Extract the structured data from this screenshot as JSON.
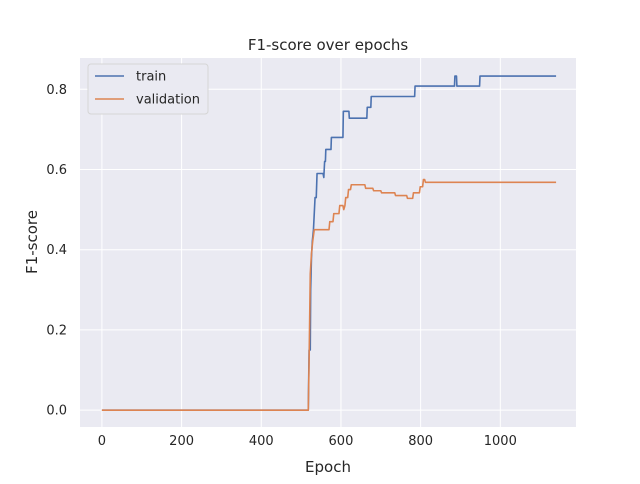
{
  "chart_data": {
    "type": "line",
    "title": "F1-score over epochs",
    "xlabel": "Epoch",
    "ylabel": "F1-score",
    "xlim": [
      -55,
      1190
    ],
    "ylim": [
      -0.042,
      0.878
    ],
    "xticks": [
      0,
      200,
      400,
      600,
      800,
      1000
    ],
    "xtick_labels": [
      "0",
      "200",
      "400",
      "600",
      "800",
      "1000"
    ],
    "yticks": [
      0.0,
      0.2,
      0.4,
      0.6,
      0.8
    ],
    "ytick_labels": [
      "0.0",
      "0.2",
      "0.4",
      "0.6",
      "0.8"
    ],
    "grid": true,
    "legend_position": "top-left",
    "series": [
      {
        "name": "train",
        "color": "#4c72b0",
        "points": [
          [
            0,
            0.0
          ],
          [
            518,
            0.0
          ],
          [
            520,
            0.15
          ],
          [
            523,
            0.15
          ],
          [
            524,
            0.3
          ],
          [
            526,
            0.38
          ],
          [
            528,
            0.42
          ],
          [
            531,
            0.45
          ],
          [
            535,
            0.53
          ],
          [
            538,
            0.53
          ],
          [
            540,
            0.59
          ],
          [
            555,
            0.59
          ],
          [
            557,
            0.58
          ],
          [
            559,
            0.62
          ],
          [
            561,
            0.62
          ],
          [
            562,
            0.65
          ],
          [
            575,
            0.65
          ],
          [
            576,
            0.68
          ],
          [
            605,
            0.68
          ],
          [
            606,
            0.745
          ],
          [
            620,
            0.745
          ],
          [
            621,
            0.728
          ],
          [
            665,
            0.728
          ],
          [
            666,
            0.755
          ],
          [
            675,
            0.755
          ],
          [
            676,
            0.782
          ],
          [
            785,
            0.782
          ],
          [
            786,
            0.808
          ],
          [
            885,
            0.808
          ],
          [
            886,
            0.833
          ],
          [
            890,
            0.833
          ],
          [
            891,
            0.808
          ],
          [
            948,
            0.808
          ],
          [
            949,
            0.833
          ],
          [
            1140,
            0.833
          ]
        ]
      },
      {
        "name": "validation",
        "color": "#dd8452",
        "points": [
          [
            0,
            0.0
          ],
          [
            518,
            0.0
          ],
          [
            520,
            0.12
          ],
          [
            523,
            0.34
          ],
          [
            526,
            0.39
          ],
          [
            529,
            0.42
          ],
          [
            533,
            0.45
          ],
          [
            570,
            0.45
          ],
          [
            572,
            0.47
          ],
          [
            580,
            0.47
          ],
          [
            582,
            0.49
          ],
          [
            595,
            0.49
          ],
          [
            597,
            0.51
          ],
          [
            605,
            0.51
          ],
          [
            607,
            0.5
          ],
          [
            610,
            0.51
          ],
          [
            612,
            0.53
          ],
          [
            617,
            0.53
          ],
          [
            619,
            0.55
          ],
          [
            624,
            0.55
          ],
          [
            626,
            0.562
          ],
          [
            660,
            0.562
          ],
          [
            662,
            0.553
          ],
          [
            680,
            0.553
          ],
          [
            682,
            0.547
          ],
          [
            700,
            0.547
          ],
          [
            702,
            0.542
          ],
          [
            735,
            0.542
          ],
          [
            737,
            0.535
          ],
          [
            765,
            0.535
          ],
          [
            767,
            0.528
          ],
          [
            780,
            0.528
          ],
          [
            782,
            0.542
          ],
          [
            797,
            0.542
          ],
          [
            799,
            0.557
          ],
          [
            805,
            0.557
          ],
          [
            807,
            0.575
          ],
          [
            810,
            0.575
          ],
          [
            812,
            0.568
          ],
          [
            1140,
            0.568
          ]
        ]
      }
    ]
  }
}
